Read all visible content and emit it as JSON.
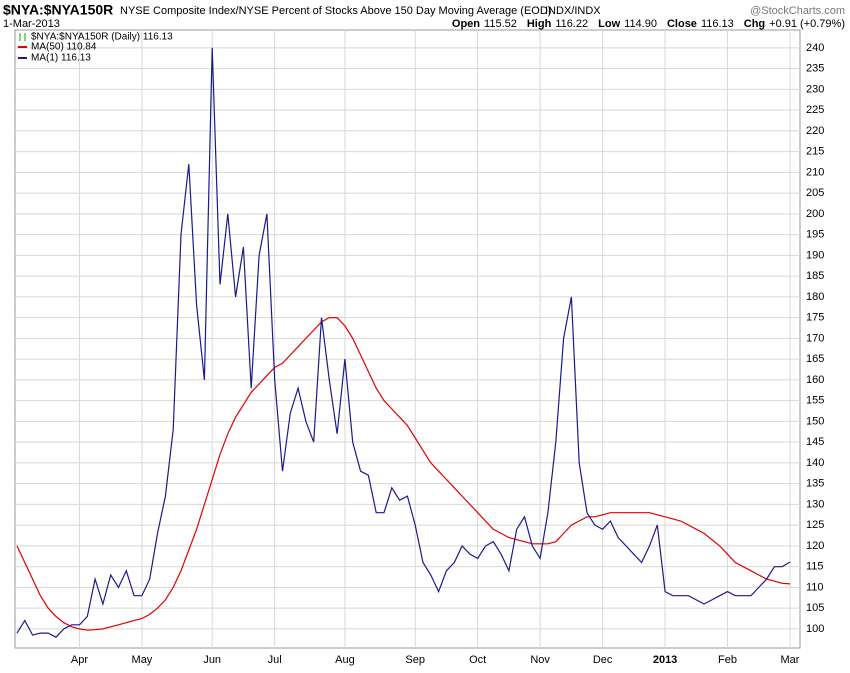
{
  "header": {
    "symbol": "$NYA:$NYA150R",
    "description": "NYSE Composite Index/NYSE Percent of Stocks Above 150 Day Moving Average (EOD)",
    "exchange": "INDX/INDX",
    "brand": "@StockCharts.com",
    "date": "1-Mar-2013",
    "quote": [
      {
        "label": "Open",
        "value": "115.52"
      },
      {
        "label": "High",
        "value": "116.22"
      },
      {
        "label": "Low",
        "value": "114.90"
      },
      {
        "label": "Close",
        "value": "116.13"
      },
      {
        "label": "Chg",
        "value": "+0.91 (+0.79%)"
      }
    ]
  },
  "chart_data": {
    "type": "line",
    "price_legend": "$NYA:$NYA150R (Daily) 116.13",
    "categories": [
      null,
      null,
      null,
      null,
      null,
      null,
      null,
      null,
      "Apr",
      null,
      null,
      null,
      null,
      null,
      null,
      null,
      "May",
      null,
      null,
      null,
      null,
      null,
      null,
      null,
      null,
      "Jun",
      null,
      null,
      null,
      null,
      null,
      null,
      null,
      "Jul",
      null,
      null,
      null,
      null,
      null,
      null,
      null,
      null,
      "Aug",
      null,
      null,
      null,
      null,
      null,
      null,
      null,
      null,
      "Sep",
      null,
      null,
      null,
      null,
      null,
      null,
      null,
      "Oct",
      null,
      null,
      null,
      null,
      null,
      null,
      null,
      "Nov",
      null,
      null,
      null,
      null,
      null,
      null,
      null,
      "Dec",
      null,
      null,
      null,
      null,
      null,
      null,
      null,
      "2013",
      null,
      null,
      null,
      null,
      null,
      null,
      null,
      "Feb",
      null,
      null,
      null,
      null,
      null,
      null,
      null,
      "Mar"
    ],
    "series": [
      {
        "name": "MA(50) 110.84",
        "color": "#e00000",
        "values": [
          120,
          116,
          112,
          108,
          105,
          103,
          101.5,
          100.5,
          100,
          99.7,
          99.8,
          100,
          100.5,
          101,
          101.5,
          102,
          102.5,
          103.5,
          105,
          107,
          110,
          114,
          119,
          124,
          130,
          136,
          142,
          147,
          151,
          154,
          157,
          159,
          161,
          163,
          164,
          166,
          168,
          170,
          172,
          174,
          175,
          175,
          173,
          170,
          166,
          162,
          158,
          155,
          153,
          151,
          149,
          146,
          143,
          140,
          138,
          136,
          134,
          132,
          130,
          128,
          126,
          124,
          123,
          122,
          121.5,
          121,
          120.5,
          120.5,
          120.5,
          121,
          123,
          125,
          126,
          127,
          127,
          127.5,
          128,
          128,
          128,
          128,
          128,
          128,
          127.5,
          127,
          126.5,
          126,
          125,
          124,
          123,
          121.5,
          120,
          118,
          116,
          115,
          114,
          113,
          112,
          111.5,
          111,
          110.84
        ]
      },
      {
        "name": "MA(1) 116.13",
        "color": "#1a1a8c",
        "values": [
          99,
          102,
          98.5,
          99,
          99,
          98,
          100,
          101,
          101,
          103,
          112,
          106,
          113,
          110,
          114,
          108,
          108,
          112,
          123,
          132,
          148,
          195,
          212,
          178,
          160,
          240,
          183,
          200,
          180,
          192,
          158,
          190,
          200,
          160,
          138,
          152,
          158,
          150,
          145,
          175,
          160,
          147,
          165,
          145,
          138,
          137,
          128,
          128,
          134,
          131,
          132,
          125,
          116,
          113,
          109,
          114,
          116,
          120,
          118,
          117,
          120,
          121,
          118,
          114,
          124,
          127,
          120,
          117,
          128,
          145,
          170,
          180,
          140,
          128,
          125,
          124,
          126,
          122,
          120,
          118,
          116,
          120,
          125,
          109,
          108,
          108,
          108,
          107,
          106,
          107,
          108,
          109,
          108,
          108,
          108,
          110,
          112,
          115,
          115,
          116.13
        ]
      }
    ],
    "ylim": [
      95.4,
      244.3
    ],
    "yticks": [
      100,
      105,
      110,
      115,
      120,
      125,
      130,
      135,
      140,
      145,
      150,
      155,
      160,
      165,
      170,
      175,
      180,
      185,
      190,
      195,
      200,
      205,
      210,
      215,
      220,
      225,
      230,
      235,
      240
    ],
    "grid": true
  }
}
